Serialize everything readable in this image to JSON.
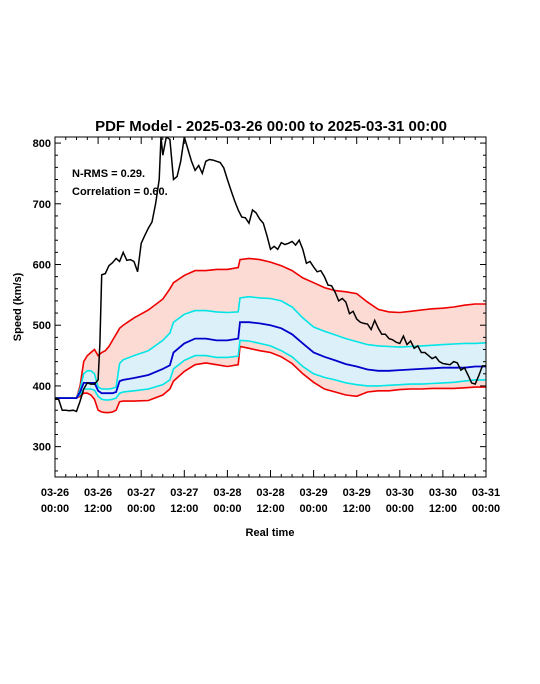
{
  "chart_data": {
    "type": "line",
    "title": "PDF Model - 2025-03-26 00:00 to 2025-03-31 00:00",
    "xlabel": "Real time",
    "ylabel": "Speed (km/s)",
    "ylim": [
      250,
      810
    ],
    "xlim": [
      0,
      120
    ],
    "x_unit": "hours since 03-26 00:00",
    "x_tick_labels": [
      [
        "03-26",
        "00:00"
      ],
      [
        "03-26",
        "12:00"
      ],
      [
        "03-27",
        "00:00"
      ],
      [
        "03-27",
        "12:00"
      ],
      [
        "03-28",
        "00:00"
      ],
      [
        "03-28",
        "12:00"
      ],
      [
        "03-29",
        "00:00"
      ],
      [
        "03-29",
        "12:00"
      ],
      [
        "03-30",
        "00:00"
      ],
      [
        "03-30",
        "12:00"
      ],
      [
        "03-31",
        "00:00"
      ]
    ],
    "y_ticks": [
      300,
      400,
      500,
      600,
      700,
      800
    ],
    "annotations": [
      "N-RMS = 0.29.",
      "Correlation = 0.60."
    ],
    "colors": {
      "observed": "#000000",
      "median": "#0000cc",
      "inner_band_line": "#00e5e5",
      "inner_band_fill": "#dcf0fa",
      "outer_band_line": "#ee0000",
      "outer_band_fill": "#fddbd5"
    },
    "series": [
      {
        "role": "observed",
        "x": [
          0,
          1,
          2,
          3,
          4,
          5,
          6,
          7,
          8,
          9,
          10,
          11,
          12,
          12.5,
          13,
          14,
          15,
          16,
          17,
          18,
          19,
          20,
          21,
          22,
          23,
          24,
          25,
          26,
          27,
          28,
          29,
          29.5,
          30,
          31,
          32,
          33,
          34,
          35,
          36,
          37,
          38,
          39,
          40,
          41,
          42,
          43,
          44,
          45,
          46,
          47,
          48,
          49,
          50,
          51,
          52,
          53,
          54,
          55,
          56,
          57,
          58,
          59,
          60,
          61,
          62,
          63,
          64,
          65,
          66,
          67,
          68,
          69,
          70,
          71,
          72,
          73,
          74,
          75,
          76,
          77,
          78,
          79,
          80,
          81,
          82,
          83,
          84,
          85,
          86,
          87,
          88,
          89,
          90,
          91,
          92,
          93,
          94,
          95,
          96,
          97,
          98,
          99,
          100,
          101,
          102,
          103,
          104,
          105,
          106,
          107,
          108,
          109,
          110,
          111,
          112,
          113,
          114,
          115,
          116,
          117,
          118,
          119,
          120
        ],
        "values": [
          378,
          378,
          360,
          360,
          359,
          360,
          358,
          375,
          395,
          405,
          403,
          403,
          410,
          470,
          583,
          585,
          598,
          603,
          610,
          605,
          620,
          607,
          608,
          605,
          588,
          635,
          648,
          660,
          670,
          700,
          740,
          810,
          780,
          810,
          806,
          740,
          745,
          770,
          810,
          790,
          770,
          755,
          763,
          750,
          770,
          773,
          772,
          770,
          768,
          759,
          740,
          722,
          705,
          690,
          678,
          677,
          668,
          690,
          685,
          675,
          668,
          648,
          625,
          630,
          625,
          636,
          633,
          635,
          638,
          632,
          640,
          625,
          602,
          605,
          596,
          588,
          590,
          580,
          566,
          565,
          554,
          540,
          544,
          538,
          519,
          523,
          510,
          505,
          503,
          502,
          493,
          508,
          495,
          485,
          485,
          478,
          476,
          472,
          470,
          482,
          468,
          474,
          462,
          466,
          455,
          455,
          450,
          445,
          448,
          440,
          437,
          436,
          435,
          440,
          438,
          426,
          430,
          418,
          405,
          403,
          417,
          433,
          433
        ]
      },
      {
        "role": "median",
        "x": [
          0,
          6,
          7,
          8,
          9,
          10,
          11,
          12,
          13,
          14,
          15,
          16,
          17,
          18,
          19,
          22,
          26,
          30,
          32,
          33,
          36,
          39,
          42,
          45,
          48,
          51,
          51.5,
          54,
          57,
          60,
          63,
          66,
          69,
          72,
          75,
          78,
          81,
          84,
          87,
          90,
          93,
          96,
          99,
          102,
          105,
          108,
          111,
          114,
          117,
          120
        ],
        "values": [
          380,
          380,
          390,
          405,
          405,
          405,
          405,
          392,
          388,
          388,
          388,
          388,
          390,
          408,
          410,
          413,
          418,
          428,
          434,
          455,
          470,
          478,
          478,
          475,
          475,
          478,
          505,
          505,
          503,
          500,
          495,
          485,
          470,
          455,
          448,
          442,
          436,
          432,
          427,
          425,
          425,
          426,
          427,
          428,
          429,
          430,
          430,
          430,
          432,
          432
        ]
      },
      {
        "role": "inner_band",
        "x": [
          0,
          6,
          7,
          8,
          9,
          10,
          11,
          12,
          13,
          14,
          15,
          16,
          17,
          18,
          19,
          22,
          26,
          30,
          32,
          33,
          36,
          39,
          42,
          45,
          48,
          51,
          51.5,
          54,
          57,
          60,
          63,
          66,
          69,
          72,
          75,
          78,
          81,
          84,
          87,
          90,
          93,
          96,
          99,
          102,
          105,
          108,
          111,
          114,
          117,
          120
        ],
        "upper": [
          380,
          380,
          395,
          420,
          425,
          425,
          420,
          398,
          395,
          395,
          395,
          396,
          398,
          437,
          443,
          450,
          458,
          475,
          487,
          505,
          518,
          524,
          524,
          522,
          521,
          522,
          545,
          547,
          545,
          544,
          540,
          530,
          512,
          497,
          490,
          484,
          478,
          473,
          468,
          466,
          465,
          464,
          465,
          466,
          467,
          468,
          469,
          470,
          470,
          471
        ],
        "lower": [
          380,
          380,
          386,
          395,
          395,
          395,
          393,
          383,
          378,
          377,
          377,
          378,
          380,
          388,
          390,
          392,
          395,
          402,
          410,
          428,
          442,
          450,
          450,
          447,
          447,
          449,
          475,
          474,
          470,
          466,
          458,
          448,
          432,
          420,
          414,
          410,
          405,
          402,
          400,
          400,
          401,
          402,
          403,
          403,
          404,
          405,
          406,
          408,
          410,
          410
        ]
      },
      {
        "role": "outer_band",
        "x": [
          0,
          6,
          7,
          8,
          9,
          10,
          11,
          12,
          13,
          14,
          15,
          16,
          17,
          18,
          19,
          22,
          26,
          30,
          32,
          33,
          36,
          39,
          42,
          45,
          48,
          51,
          51.5,
          54,
          57,
          60,
          63,
          66,
          69,
          72,
          75,
          78,
          81,
          84,
          87,
          90,
          93,
          96,
          99,
          102,
          105,
          108,
          111,
          114,
          117,
          120
        ],
        "upper": [
          380,
          380,
          400,
          440,
          450,
          455,
          460,
          450,
          455,
          458,
          465,
          475,
          485,
          495,
          500,
          512,
          525,
          543,
          560,
          570,
          582,
          590,
          590,
          592,
          592,
          595,
          608,
          610,
          608,
          604,
          598,
          590,
          578,
          570,
          562,
          557,
          555,
          552,
          538,
          526,
          522,
          521,
          523,
          525,
          527,
          528,
          530,
          533,
          535,
          535
        ],
        "lower": [
          380,
          380,
          383,
          388,
          388,
          385,
          378,
          360,
          357,
          356,
          356,
          357,
          360,
          374,
          375,
          375,
          376,
          385,
          395,
          408,
          424,
          435,
          438,
          435,
          432,
          435,
          465,
          462,
          458,
          455,
          448,
          437,
          420,
          406,
          395,
          390,
          385,
          383,
          390,
          392,
          392,
          394,
          395,
          395,
          396,
          396,
          396,
          397,
          398,
          398
        ]
      }
    ]
  }
}
